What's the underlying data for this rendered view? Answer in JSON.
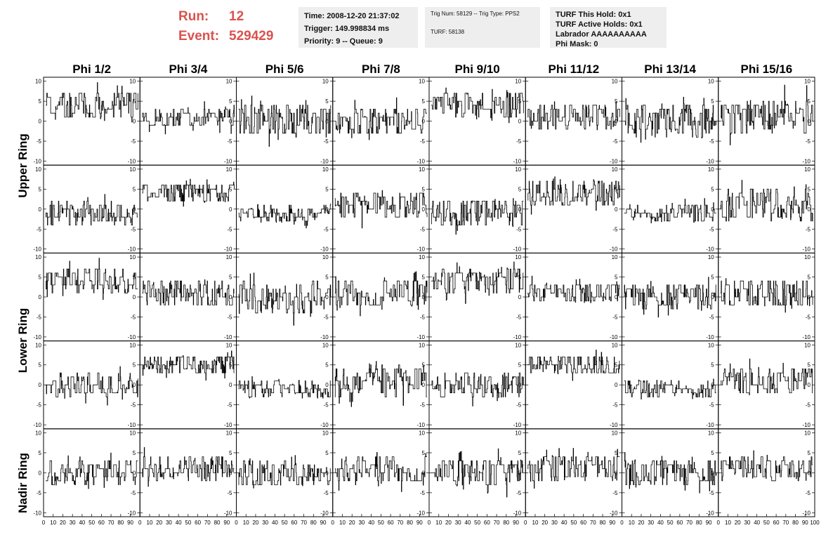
{
  "header": {
    "run_label": "Run:",
    "run_value": "12",
    "event_label": "Event:",
    "event_value": "529429",
    "info1": [
      "Time: 2008-12-20 21:37:02",
      "Trigger: 149.998834 ms",
      "Priority: 9 -- Queue: 9"
    ],
    "info2": [
      "Trig Num: 58129 -- Trig Type: PPS2",
      "TURF: 58138"
    ],
    "info3": [
      "TURF This Hold: 0x1",
      "TURF Active Holds: 0x1",
      "Labrador AAAAAAAAAA",
      "Phi Mask: 0"
    ]
  },
  "colors": {
    "run_text": "#d9534f",
    "info_bg": "#eeeeee",
    "trace": "#000000"
  },
  "chart_data": {
    "type": "line",
    "columns": [
      "Phi 1/2",
      "Phi 3/4",
      "Phi 5/6",
      "Phi 7/8",
      "Phi 9/10",
      "Phi 11/12",
      "Phi 13/14",
      "Phi 15/16"
    ],
    "row_labels": [
      "Upper Ring",
      "Lower Ring",
      "Nadir Ring"
    ],
    "ylim": [
      -11,
      11
    ],
    "yticks": [
      10,
      5,
      0,
      -5,
      -10
    ],
    "xlim": [
      0,
      100
    ],
    "xticks": [
      "0",
      "10",
      "20",
      "30",
      "40",
      "50",
      "60",
      "70",
      "80",
      "90",
      "100"
    ],
    "samples_per_trace": 260,
    "panels": [
      [
        {
          "offset": 4,
          "amp": 3.5
        },
        {
          "offset": 1,
          "amp": 2.5
        },
        {
          "offset": 0,
          "amp": 4
        },
        {
          "offset": 0,
          "amp": 3.5
        },
        {
          "offset": 4,
          "amp": 3.5
        },
        {
          "offset": 1,
          "amp": 3.5
        },
        {
          "offset": 0,
          "amp": 4
        },
        {
          "offset": 1,
          "amp": 4.5
        }
      ],
      [
        {
          "offset": -1,
          "amp": 3
        },
        {
          "offset": 4,
          "amp": 2.5
        },
        {
          "offset": -1,
          "amp": 2
        },
        {
          "offset": 1,
          "amp": 3.5
        },
        {
          "offset": -1,
          "amp": 3.5
        },
        {
          "offset": 4,
          "amp": 3
        },
        {
          "offset": -1,
          "amp": 2
        },
        {
          "offset": 1,
          "amp": 4
        }
      ],
      [
        {
          "offset": 4,
          "amp": 3.5
        },
        {
          "offset": 1,
          "amp": 3
        },
        {
          "offset": 0,
          "amp": 4.5
        },
        {
          "offset": 1,
          "amp": 3.5
        },
        {
          "offset": 4,
          "amp": 3
        },
        {
          "offset": 1,
          "amp": 2.5
        },
        {
          "offset": 0,
          "amp": 3.5
        },
        {
          "offset": 1,
          "amp": 3.5
        }
      ],
      [
        {
          "offset": 0,
          "amp": 3
        },
        {
          "offset": 5,
          "amp": 2.5
        },
        {
          "offset": -1,
          "amp": 2
        },
        {
          "offset": 1,
          "amp": 4
        },
        {
          "offset": 0,
          "amp": 3
        },
        {
          "offset": 5,
          "amp": 2.5
        },
        {
          "offset": -1,
          "amp": 2
        },
        {
          "offset": 1,
          "amp": 3
        }
      ],
      [
        {
          "offset": 0,
          "amp": 3.5
        },
        {
          "offset": 1,
          "amp": 3
        },
        {
          "offset": 0,
          "amp": 3.5
        },
        {
          "offset": 1,
          "amp": 3.5
        },
        {
          "offset": 0,
          "amp": 3.5
        },
        {
          "offset": 1,
          "amp": 3.5
        },
        {
          "offset": 0,
          "amp": 3.5
        },
        {
          "offset": 1,
          "amp": 3
        }
      ]
    ]
  }
}
